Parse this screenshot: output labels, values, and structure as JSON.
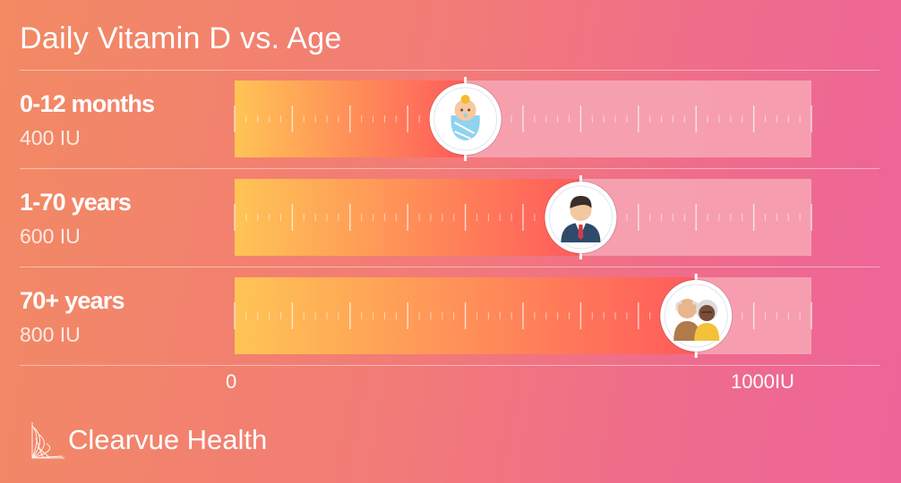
{
  "title": "Daily Vitamin D vs. Age",
  "brand": {
    "name": "Clearvue Health",
    "logo_icon": "triangle-mesh-icon"
  },
  "colors": {
    "fill_start": "#ffc455",
    "fill_end": "#ff5b5b",
    "track": "#f6a4b4",
    "badge_border": "#ffffff"
  },
  "chart_data": {
    "type": "bar",
    "orientation": "horizontal",
    "title": "Daily Vitamin D vs. Age",
    "categories": [
      "0-12 months",
      "1-70 years",
      "70+ years"
    ],
    "values": [
      400,
      600,
      800
    ],
    "value_labels": [
      "400 IU",
      "600 IU",
      "800 IU"
    ],
    "xlim": [
      0,
      1000
    ],
    "x_tick_labels": [
      "0",
      "1000IU"
    ],
    "marker_icons": [
      "baby-icon",
      "adult-man-icon",
      "elderly-couple-icon"
    ],
    "grid": false
  }
}
